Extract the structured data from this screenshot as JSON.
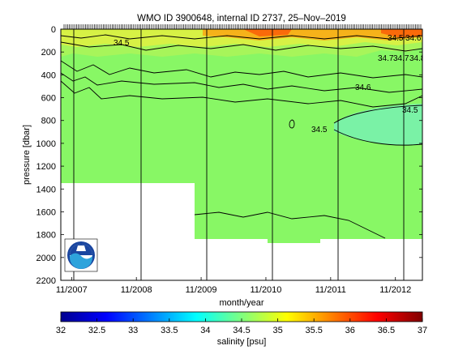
{
  "chart_data": {
    "type": "heatmap",
    "title": "WMO ID 3900648, internal ID 2737, 25–Nov–2019",
    "xlabel": "month/year",
    "ylabel": "pressure [dbar]",
    "x_tick_labels": [
      "11/2007",
      "11/2008",
      "11/2009",
      "11/2010",
      "11/2011",
      "11/2012"
    ],
    "y_ticks": [
      0,
      200,
      400,
      600,
      800,
      1000,
      1200,
      1400,
      1600,
      1800,
      2000,
      2200
    ],
    "ylim": [
      2200,
      0
    ],
    "xlim_months": [
      0,
      67
    ],
    "grid": false,
    "colorbar": {
      "label": "salinity [psu]",
      "ticks": [
        32,
        32.5,
        33,
        33.5,
        34,
        34.5,
        35,
        35.5,
        36,
        36.5,
        37
      ],
      "range": [
        32,
        37
      ]
    },
    "contour_labels": [
      "34.5",
      "34.7",
      "34.6",
      "34.5",
      "34.5",
      "34.5",
      "34.6",
      "34.7",
      "34.8"
    ],
    "colors": {
      "deep_water": "#88f765",
      "intermediate": "#a7f55a",
      "fresh_lens": "#7af2a6",
      "upper_layer": "#d7f145",
      "surface_warm": "#f6b21a",
      "surface_hot": "#fa6a0a",
      "contour": "#000000"
    },
    "logo": "noaa-logo"
  }
}
